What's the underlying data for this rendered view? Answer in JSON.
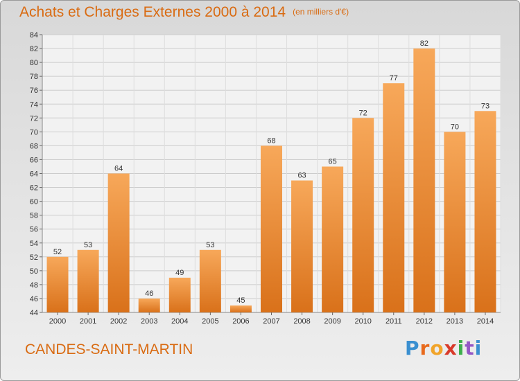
{
  "header": {
    "title": "Achats et Charges Externes 2000 à 2014",
    "subtitle": "(en milliers d'€)"
  },
  "footer": {
    "location": "CANDES-SAINT-MARTIN",
    "logo": [
      "P",
      "r",
      "o",
      "x",
      "i",
      "t",
      "i"
    ]
  },
  "colors": {
    "bar": "#f29a3f",
    "title": "#d96b12"
  },
  "chart_data": {
    "type": "bar",
    "title": "Achats et Charges Externes 2000 à 2014",
    "subtitle": "(en milliers d'€)",
    "categories": [
      "2000",
      "2001",
      "2002",
      "2003",
      "2004",
      "2005",
      "2006",
      "2007",
      "2008",
      "2009",
      "2010",
      "2011",
      "2012",
      "2013",
      "2014"
    ],
    "values": [
      52,
      53,
      64,
      46,
      49,
      53,
      45,
      68,
      63,
      65,
      72,
      77,
      82,
      70,
      73
    ],
    "ylim": [
      44,
      84
    ],
    "yticks": [
      44,
      46,
      48,
      50,
      52,
      54,
      56,
      58,
      60,
      62,
      64,
      66,
      68,
      70,
      72,
      74,
      76,
      78,
      80,
      82,
      84
    ],
    "grid": true,
    "legend": "none"
  }
}
